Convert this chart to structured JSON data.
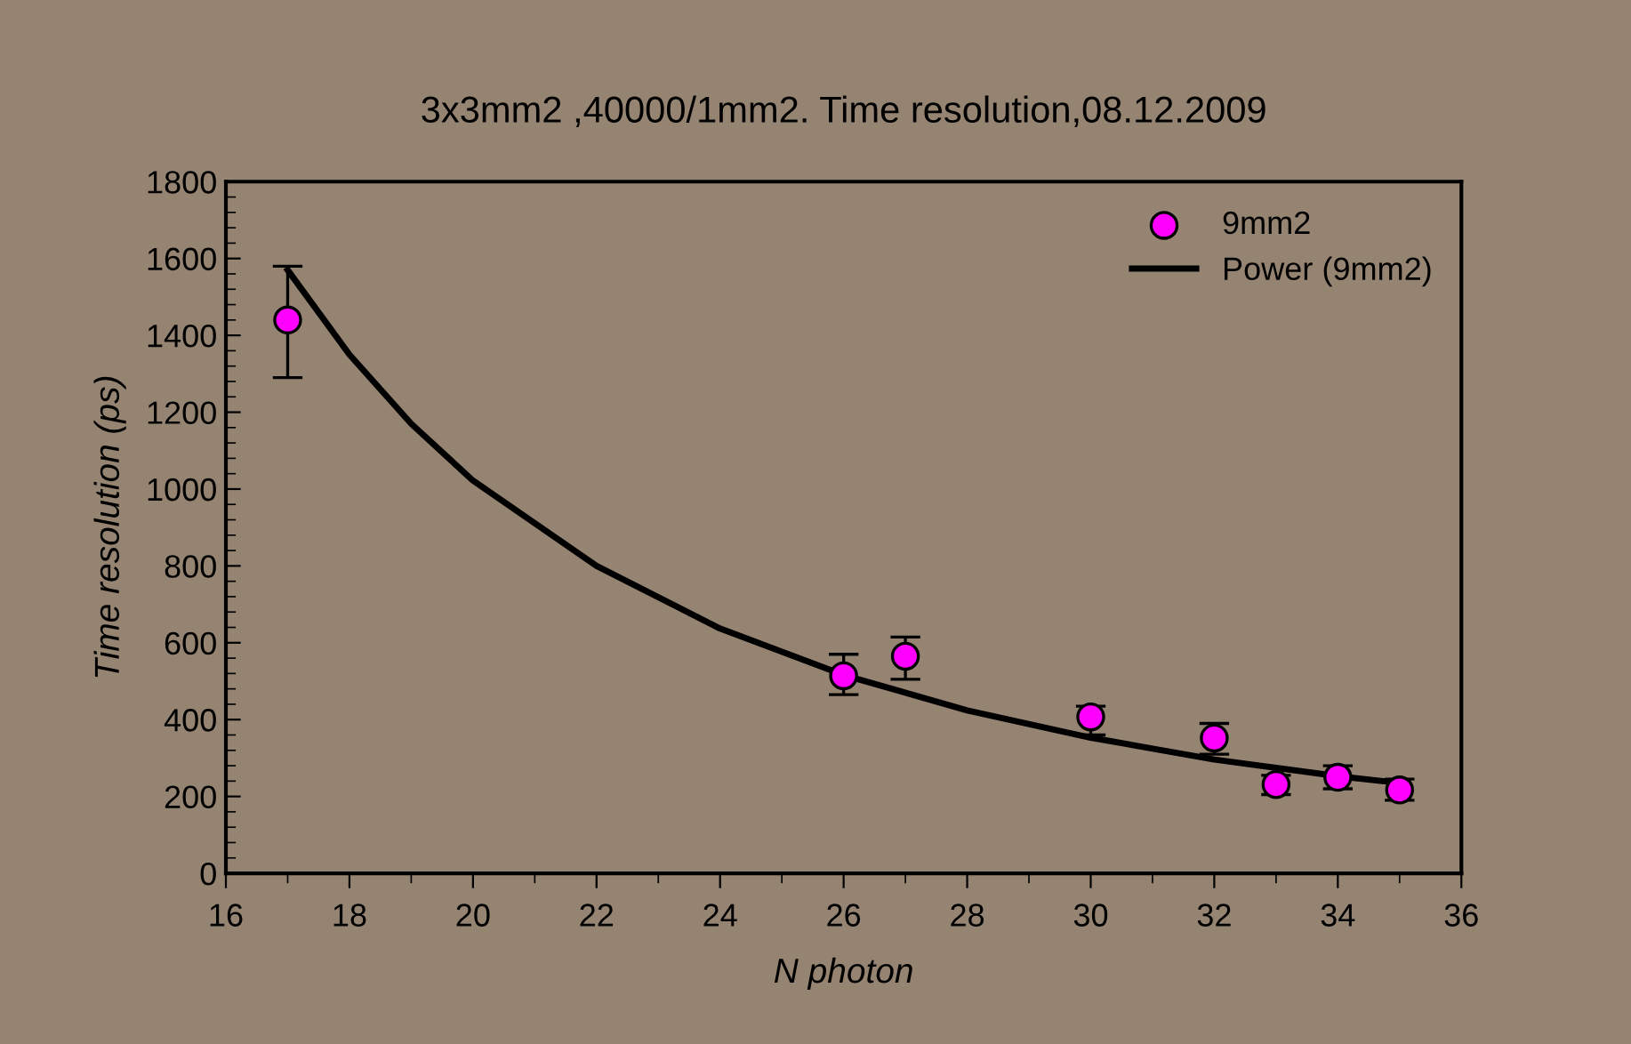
{
  "chart_data": {
    "type": "scatter",
    "title": "3x3mm2 ,40000/1mm2. Time resolution,08.12.2009",
    "xlabel": "N photon",
    "ylabel": "Time resolution (ps)",
    "xlim": [
      16,
      36
    ],
    "xticks": [
      16,
      18,
      20,
      22,
      24,
      26,
      28,
      30,
      32,
      34,
      36
    ],
    "ylim": [
      0,
      1800
    ],
    "yticks": [
      0,
      200,
      400,
      600,
      800,
      1000,
      1200,
      1400,
      1600,
      1800
    ],
    "grid": false,
    "legend": "top right",
    "series": [
      {
        "name": "9mm2",
        "color": "#ff00ff",
        "marker": "circle",
        "x": [
          17,
          26,
          27,
          30,
          32,
          33,
          34,
          35
        ],
        "values": [
          1440,
          514,
          565,
          407,
          352,
          231,
          250,
          217
        ],
        "errors": [
          [
            1290,
            1580
          ],
          [
            465,
            570
          ],
          [
            505,
            615
          ],
          [
            360,
            435
          ],
          [
            310,
            390
          ],
          [
            205,
            255
          ],
          [
            220,
            280
          ],
          [
            190,
            245
          ]
        ]
      },
      {
        "name": "Power (9mm2)",
        "type": "line",
        "color": "#000000",
        "marker": "none",
        "line_style": "solid",
        "x": [
          17,
          18,
          19,
          20,
          22,
          24,
          26,
          28,
          30,
          32,
          34,
          35
        ],
        "values": [
          1570,
          1350,
          1170,
          1022,
          800,
          637,
          516,
          424,
          353,
          296,
          253,
          235
        ]
      }
    ]
  }
}
